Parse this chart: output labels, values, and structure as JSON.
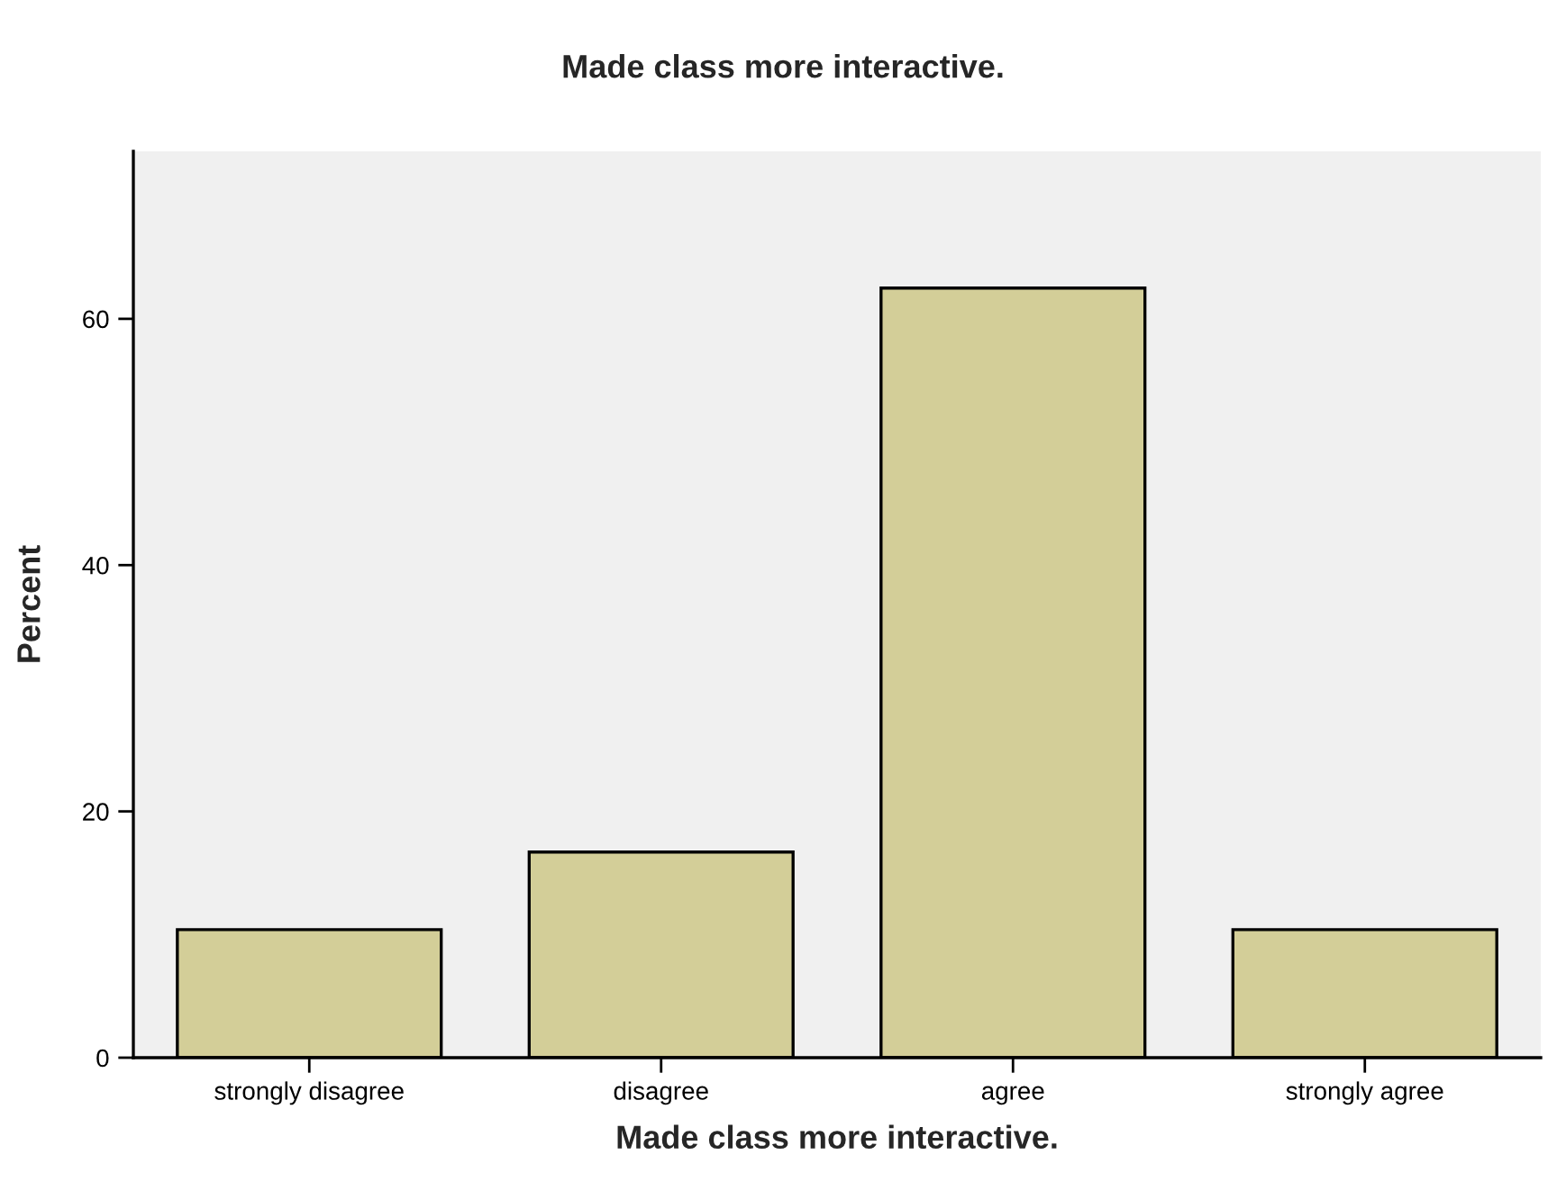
{
  "chart_data": {
    "type": "bar",
    "title": "Made class more interactive.",
    "xlabel": "Made class more interactive.",
    "ylabel": "Percent",
    "categories": [
      "strongly disagree",
      "disagree",
      "agree",
      "strongly agree"
    ],
    "values": [
      10.4,
      16.7,
      62.5,
      10.4
    ],
    "color": "#d3ce98",
    "ylim": [
      0,
      73.6
    ],
    "yticks": [
      0,
      20,
      40,
      60
    ],
    "grid": false,
    "legend": false
  }
}
